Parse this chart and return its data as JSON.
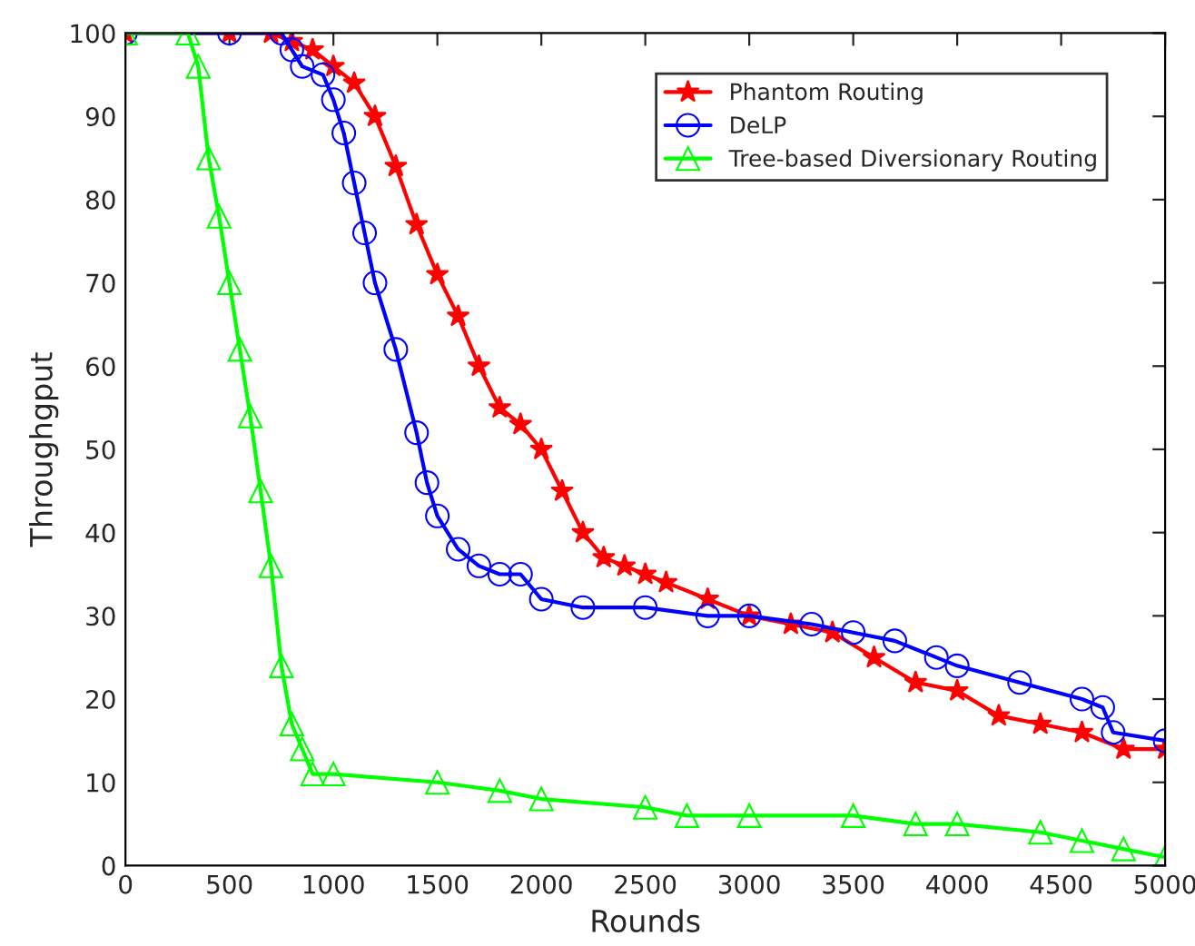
{
  "chart_data": {
    "type": "line",
    "xlabel": "Rounds",
    "ylabel": "Throughgput",
    "xlim": [
      0,
      5000
    ],
    "xticks": [
      0,
      500,
      1000,
      1500,
      2000,
      2500,
      3000,
      3500,
      4000,
      4500,
      5000
    ],
    "ylim": [
      0,
      100
    ],
    "yticks": [
      0,
      10,
      20,
      30,
      40,
      50,
      60,
      70,
      80,
      90,
      100
    ],
    "grid": false,
    "legend": "top right",
    "series": [
      {
        "name": "Phantom Routing",
        "color": "#ff0000",
        "marker": "star",
        "x": [
          0,
          500,
          700,
          800,
          900,
          1000,
          1100,
          1200,
          1300,
          1400,
          1500,
          1600,
          1700,
          1800,
          1900,
          2000,
          2100,
          2200,
          2300,
          2400,
          2500,
          2600,
          2800,
          3000,
          3200,
          3400,
          3600,
          3800,
          4000,
          4200,
          4400,
          4600,
          4800,
          5000
        ],
        "values": [
          100,
          100,
          100,
          99,
          98,
          96,
          94,
          90,
          84,
          77,
          71,
          66,
          60,
          55,
          53,
          50,
          45,
          40,
          37,
          36,
          35,
          34,
          32,
          30,
          29,
          28,
          25,
          22,
          21,
          18,
          17,
          16,
          14,
          14
        ]
      },
      {
        "name": "DeLP",
        "color": "#0000ff",
        "marker": "circle",
        "x": [
          0,
          500,
          750,
          800,
          850,
          950,
          1000,
          1050,
          1100,
          1150,
          1200,
          1300,
          1400,
          1450,
          1500,
          1600,
          1700,
          1800,
          1900,
          2000,
          2200,
          2500,
          2800,
          3000,
          3300,
          3500,
          3700,
          3900,
          4000,
          4300,
          4600,
          4700,
          4750,
          5000
        ],
        "values": [
          100,
          100,
          100,
          98,
          96,
          95,
          92,
          88,
          82,
          76,
          70,
          62,
          52,
          46,
          42,
          38,
          36,
          35,
          35,
          32,
          31,
          31,
          30,
          30,
          29,
          28,
          27,
          25,
          24,
          22,
          20,
          19,
          16,
          15
        ]
      },
      {
        "name": "Tree-based Diversionary Routing",
        "color": "#00ff00",
        "marker": "triangle",
        "x": [
          0,
          300,
          350,
          400,
          450,
          500,
          550,
          600,
          650,
          700,
          750,
          800,
          850,
          900,
          1000,
          1500,
          1800,
          2000,
          2500,
          2700,
          3000,
          3500,
          3800,
          4000,
          4400,
          4600,
          4800,
          5000
        ],
        "values": [
          100,
          100,
          96,
          85,
          78,
          70,
          62,
          54,
          45,
          36,
          24,
          17,
          14,
          11,
          11,
          10,
          9,
          8,
          7,
          6,
          6,
          6,
          5,
          5,
          4,
          3,
          2,
          1
        ]
      }
    ]
  }
}
